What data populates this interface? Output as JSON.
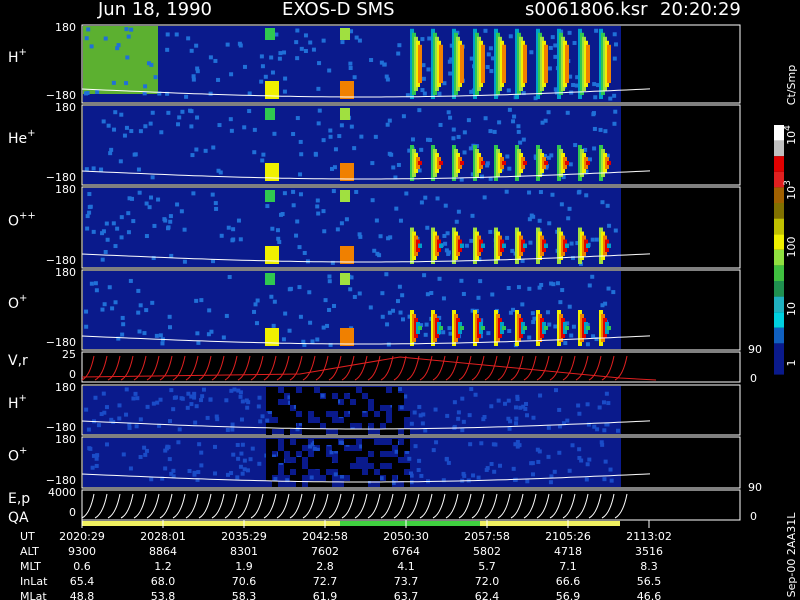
{
  "header": {
    "date": "Jun 18, 1990",
    "instrument": "EXOS-D SMS",
    "file": "s0061806.ksr",
    "time": "20:20:29"
  },
  "panels": [
    {
      "label": "H",
      "sup": "+",
      "ticks": [
        "180",
        "−180"
      ]
    },
    {
      "label": "He",
      "sup": "+",
      "ticks": [
        "180",
        "−180"
      ]
    },
    {
      "label": "O",
      "sup": "++",
      "ticks": [
        "180",
        "−180"
      ]
    },
    {
      "label": "O",
      "sup": "+",
      "ticks": [
        "180",
        "−180"
      ]
    },
    {
      "label": "V,r",
      "ticks": [
        "25",
        "0"
      ],
      "right_ticks": [
        "90",
        "0"
      ]
    },
    {
      "label": "H",
      "sup": "+",
      "ticks": [
        "180",
        "−180"
      ]
    },
    {
      "label": "O",
      "sup": "+",
      "ticks": [
        "180",
        "−180"
      ]
    },
    {
      "label": "E,p",
      "ticks": [
        "4000",
        "0"
      ],
      "right_ticks": [
        "90",
        "0"
      ]
    }
  ],
  "qa_label": "QA",
  "colorbar": {
    "unit": "Ct/Smp",
    "ticks": [
      {
        "base": "10",
        "exp": "4"
      },
      {
        "base": "10",
        "exp": "3"
      },
      "100",
      "10",
      "1"
    ]
  },
  "footer_note": "Sep-00 2AA31L",
  "table": {
    "rows": [
      {
        "label": "UT",
        "values": [
          "2020:29",
          "2028:01",
          "2035:29",
          "2042:58",
          "2050:30",
          "2057:58",
          "2105:26",
          "2113:02"
        ]
      },
      {
        "label": "ALT",
        "values": [
          "9300",
          "8864",
          "8301",
          "7602",
          "6764",
          "5802",
          "4718",
          "3516"
        ]
      },
      {
        "label": "MLT",
        "values": [
          "0.6",
          "1.2",
          "1.9",
          "2.8",
          "4.1",
          "5.7",
          "7.1",
          "8.3"
        ]
      },
      {
        "label": "InLat",
        "values": [
          "65.4",
          "68.0",
          "70.6",
          "72.7",
          "73.7",
          "72.0",
          "66.6",
          "56.5"
        ]
      },
      {
        "label": "MLat",
        "values": [
          "48.8",
          "53.8",
          "58.3",
          "61.9",
          "63.7",
          "62.4",
          "56.9",
          "46.6"
        ]
      }
    ]
  }
}
